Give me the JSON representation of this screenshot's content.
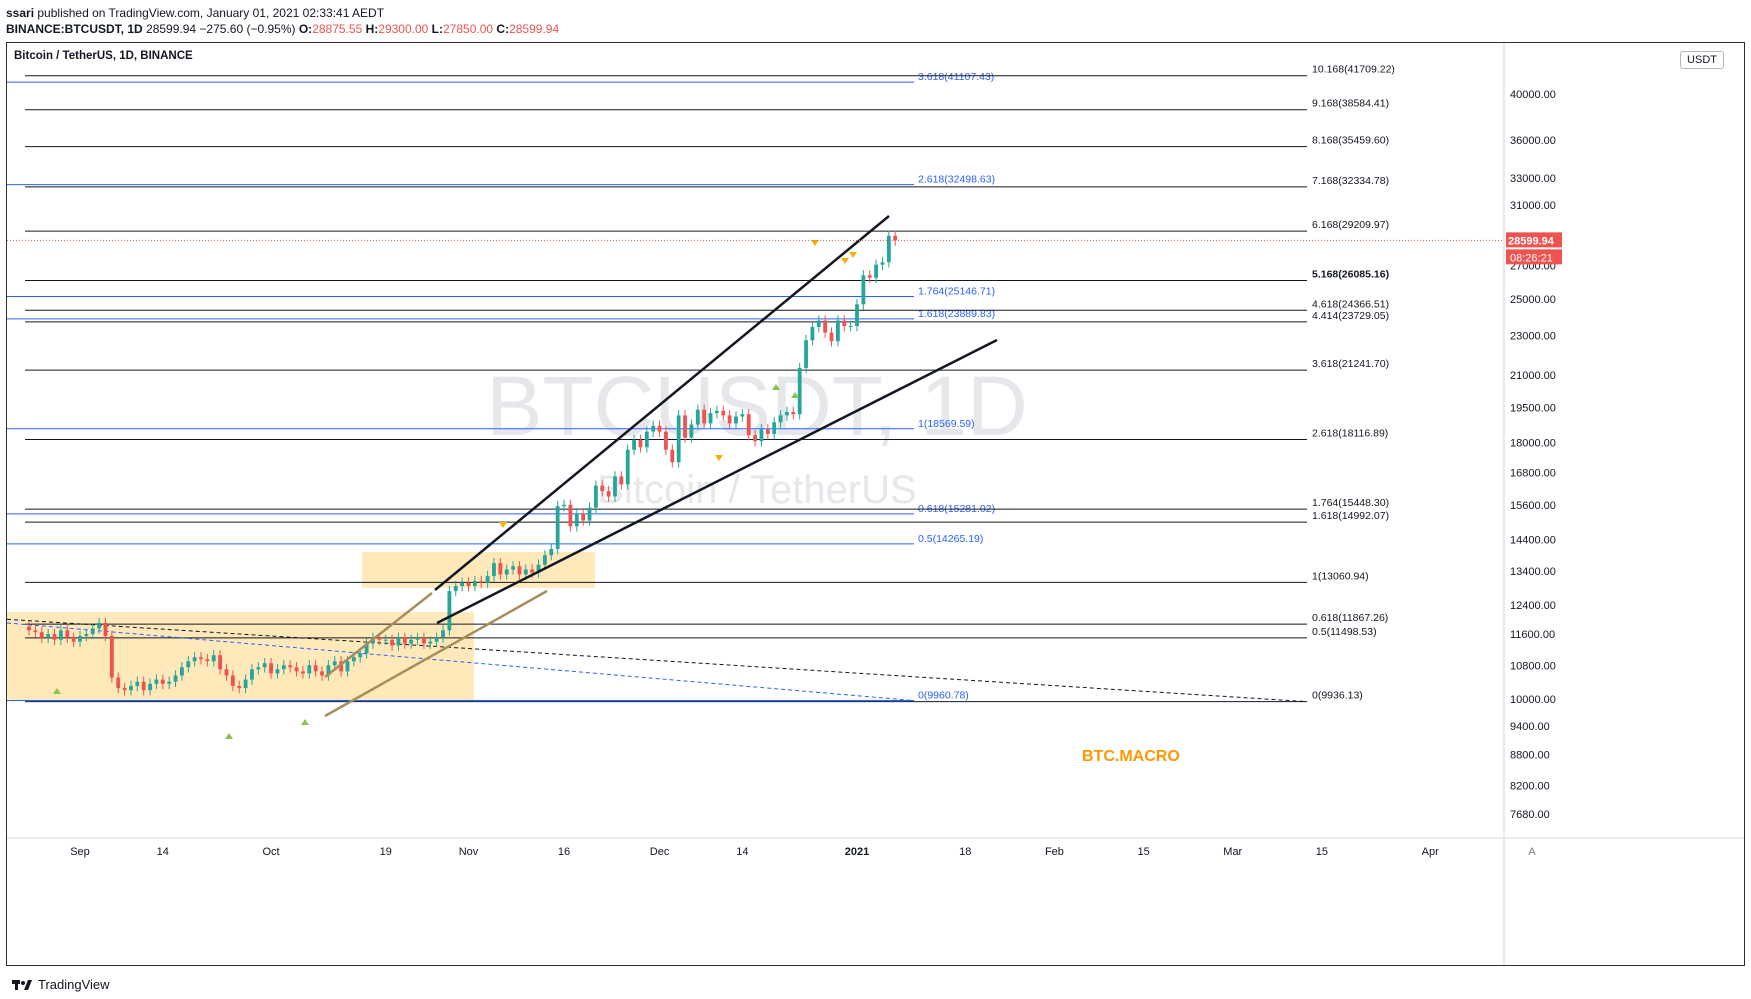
{
  "header": {
    "publisher": "ssari",
    "published_text": "published on TradingView.com, January 01, 2021 02:33:41 AEDT",
    "symbol": "BINANCE:BTCUSDT, 1D",
    "last": "28599.94",
    "change": "−275.60 (−0.95%)",
    "o_label": "O:",
    "o": "28875.55",
    "h_label": "H:",
    "h": "29300.00",
    "l_label": "L:",
    "l": "27850.00",
    "c_label": "C:",
    "c": "28599.94"
  },
  "footer": {
    "brand": "TradingView"
  },
  "chart_data": {
    "type": "candlestick",
    "title": "Bitcoin / TetherUS, 1D, BINANCE",
    "watermark_symbol": "BTCUSDT, 1D",
    "watermark_name": "Bitcoin / TetherUS",
    "annotation": "BTC.MACRO",
    "currency_badge": "USDT",
    "price_scale": "log",
    "y_ticks": [
      "40000.00",
      "36000.00",
      "33000.00",
      "31000.00",
      "27000.00",
      "25000.00",
      "23000.00",
      "21000.00",
      "19500.00",
      "18000.00",
      "16800.00",
      "15600.00",
      "14400.00",
      "13400.00",
      "12400.00",
      "11600.00",
      "10800.00",
      "10000.00",
      "9400.00",
      "8800.00",
      "8200.00",
      "7680.00"
    ],
    "y_tick_values": [
      40000,
      36000,
      33000,
      31000,
      27000,
      25000,
      23000,
      21000,
      19500,
      18000,
      16800,
      15600,
      14400,
      13400,
      12400,
      11600,
      10800,
      10000,
      9400,
      8800,
      8200,
      7680
    ],
    "x_ticks": [
      {
        "label": "Sep",
        "date": "2020-09-01"
      },
      {
        "label": "14",
        "date": "2020-09-14"
      },
      {
        "label": "Oct",
        "date": "2020-10-01"
      },
      {
        "label": "19",
        "date": "2020-10-19"
      },
      {
        "label": "Nov",
        "date": "2020-11-01"
      },
      {
        "label": "16",
        "date": "2020-11-16"
      },
      {
        "label": "Dec",
        "date": "2020-12-01"
      },
      {
        "label": "14",
        "date": "2020-12-14"
      },
      {
        "label": "2021",
        "date": "2021-01-01"
      },
      {
        "label": "18",
        "date": "2021-01-18"
      },
      {
        "label": "Feb",
        "date": "2021-02-01"
      },
      {
        "label": "15",
        "date": "2021-02-15"
      },
      {
        "label": "Mar",
        "date": "2021-03-01"
      },
      {
        "label": "15",
        "date": "2021-03-15"
      },
      {
        "label": "Apr",
        "date": "2021-04-01"
      }
    ],
    "last_price_label": "28599.94",
    "countdown_label": "08:26:21",
    "colors": {
      "up": "#26a69a",
      "down": "#ef5350",
      "fib_blue": "#2962ff",
      "fib_black": "#131722",
      "box": "#ffe0a3",
      "annotation": "#ff9800",
      "last_price": "#ef5350",
      "pitchfork_tan": "#a68d5e"
    },
    "fib_blue_levels": [
      {
        "label": "3.618(41107.43)",
        "price": 41107.43
      },
      {
        "label": "2.618(32498.63)",
        "price": 32498.63
      },
      {
        "label": "1.764(25146.71)",
        "price": 25146.71
      },
      {
        "label": "1.618(23889.83)",
        "price": 23889.83
      },
      {
        "label": "1(18569.59)",
        "price": 18569.59
      },
      {
        "label": "0.618(15281.02)",
        "price": 15281.02
      },
      {
        "label": "0.5(14265.19)",
        "price": 14265.19
      },
      {
        "label": "0(9960.78)",
        "price": 9960.78
      }
    ],
    "fib_black_levels": [
      {
        "label": "10.168(41709.22)",
        "price": 41709.22
      },
      {
        "label": "9.168(38584.41)",
        "price": 38584.41
      },
      {
        "label": "8.168(35459.60)",
        "price": 35459.6
      },
      {
        "label": "7.168(32334.78)",
        "price": 32334.78
      },
      {
        "label": "6.168(29209.97)",
        "price": 29209.97
      },
      {
        "label": "5.168(26085.16)",
        "price": 26085.16,
        "bold": true
      },
      {
        "label": "4.618(24366.51)",
        "price": 24366.51
      },
      {
        "label": "4.414(23729.05)",
        "price": 23729.05
      },
      {
        "label": "3.618(21241.70)",
        "price": 21241.7
      },
      {
        "label": "2.618(18116.89)",
        "price": 18116.89
      },
      {
        "label": "1.764(15448.30)",
        "price": 15448.3
      },
      {
        "label": "1.618(14992.07)",
        "price": 14992.07
      },
      {
        "label": "1(13060.94)",
        "price": 13060.94
      },
      {
        "label": "0.618(11867.26)",
        "price": 11867.26
      },
      {
        "label": "0.5(11498.53)",
        "price": 11498.53
      },
      {
        "label": "0(9936.13)",
        "price": 9936.13
      }
    ],
    "candles_close": [
      11700,
      11650,
      11500,
      11600,
      11450,
      11700,
      11500,
      11400,
      11550,
      11600,
      11750,
      11900,
      11550,
      10500,
      10250,
      10200,
      10300,
      10400,
      10200,
      10350,
      10450,
      10350,
      10400,
      10550,
      10750,
      10900,
      11000,
      10950,
      10900,
      11050,
      10700,
      10550,
      10300,
      10250,
      10450,
      10700,
      10750,
      10850,
      10600,
      10700,
      10800,
      10750,
      10650,
      10600,
      10800,
      10650,
      10550,
      10800,
      10900,
      10650,
      10900,
      11000,
      11100,
      11350,
      11500,
      11450,
      11450,
      11300,
      11500,
      11350,
      11450,
      11500,
      11350,
      11400,
      11500,
      11700,
      12800,
      12950,
      13050,
      12950,
      13100,
      13050,
      13250,
      13650,
      13300,
      13450,
      13550,
      13300,
      13450,
      13350,
      13600,
      13900,
      14100,
      15550,
      15600,
      14850,
      15300,
      15050,
      15500,
      16300,
      16100,
      15900,
      16650,
      16350,
      17700,
      18100,
      17800,
      18450,
      18700,
      18450,
      17700,
      17200,
      19150,
      18200,
      18750,
      19400,
      18800,
      19250,
      19350,
      19150,
      18800,
      19100,
      19200,
      18300,
      18050,
      18550,
      18350,
      18850,
      19150,
      19300,
      19200,
      21350,
      22750,
      23450,
      23800,
      23150,
      22700,
      23800,
      23500,
      23500,
      24700,
      26400,
      26250,
      27050,
      27200,
      28900,
      28600
    ],
    "candles_open": [
      11800,
      11700,
      11650,
      11500,
      11600,
      11450,
      11700,
      11500,
      11400,
      11550,
      11600,
      11750,
      11900,
      11550,
      10500,
      10250,
      10200,
      10300,
      10400,
      10200,
      10350,
      10450,
      10350,
      10400,
      10550,
      10750,
      10900,
      11000,
      10950,
      10900,
      11050,
      10700,
      10550,
      10300,
      10250,
      10450,
      10700,
      10750,
      10850,
      10600,
      10700,
      10800,
      10750,
      10650,
      10600,
      10800,
      10650,
      10550,
      10800,
      10900,
      10650,
      10900,
      11000,
      11100,
      11350,
      11500,
      11450,
      11450,
      11300,
      11500,
      11350,
      11450,
      11500,
      11350,
      11400,
      11500,
      11700,
      12800,
      12950,
      13050,
      12950,
      13100,
      13050,
      13250,
      13650,
      13300,
      13450,
      13550,
      13300,
      13450,
      13350,
      13600,
      13900,
      14100,
      15550,
      15600,
      14850,
      15300,
      15050,
      15500,
      16300,
      16100,
      15900,
      16650,
      16350,
      17700,
      18100,
      17800,
      18450,
      18700,
      18450,
      17700,
      17200,
      19150,
      18200,
      18750,
      19400,
      18800,
      19250,
      19350,
      19150,
      18800,
      19100,
      19200,
      18300,
      18050,
      18550,
      18350,
      18850,
      19150,
      19300,
      19200,
      21350,
      22750,
      23450,
      23800,
      23150,
      22700,
      23800,
      23500,
      23500,
      24700,
      26400,
      26250,
      27050,
      27200,
      28900
    ],
    "candles_start": "2020-08-24"
  }
}
